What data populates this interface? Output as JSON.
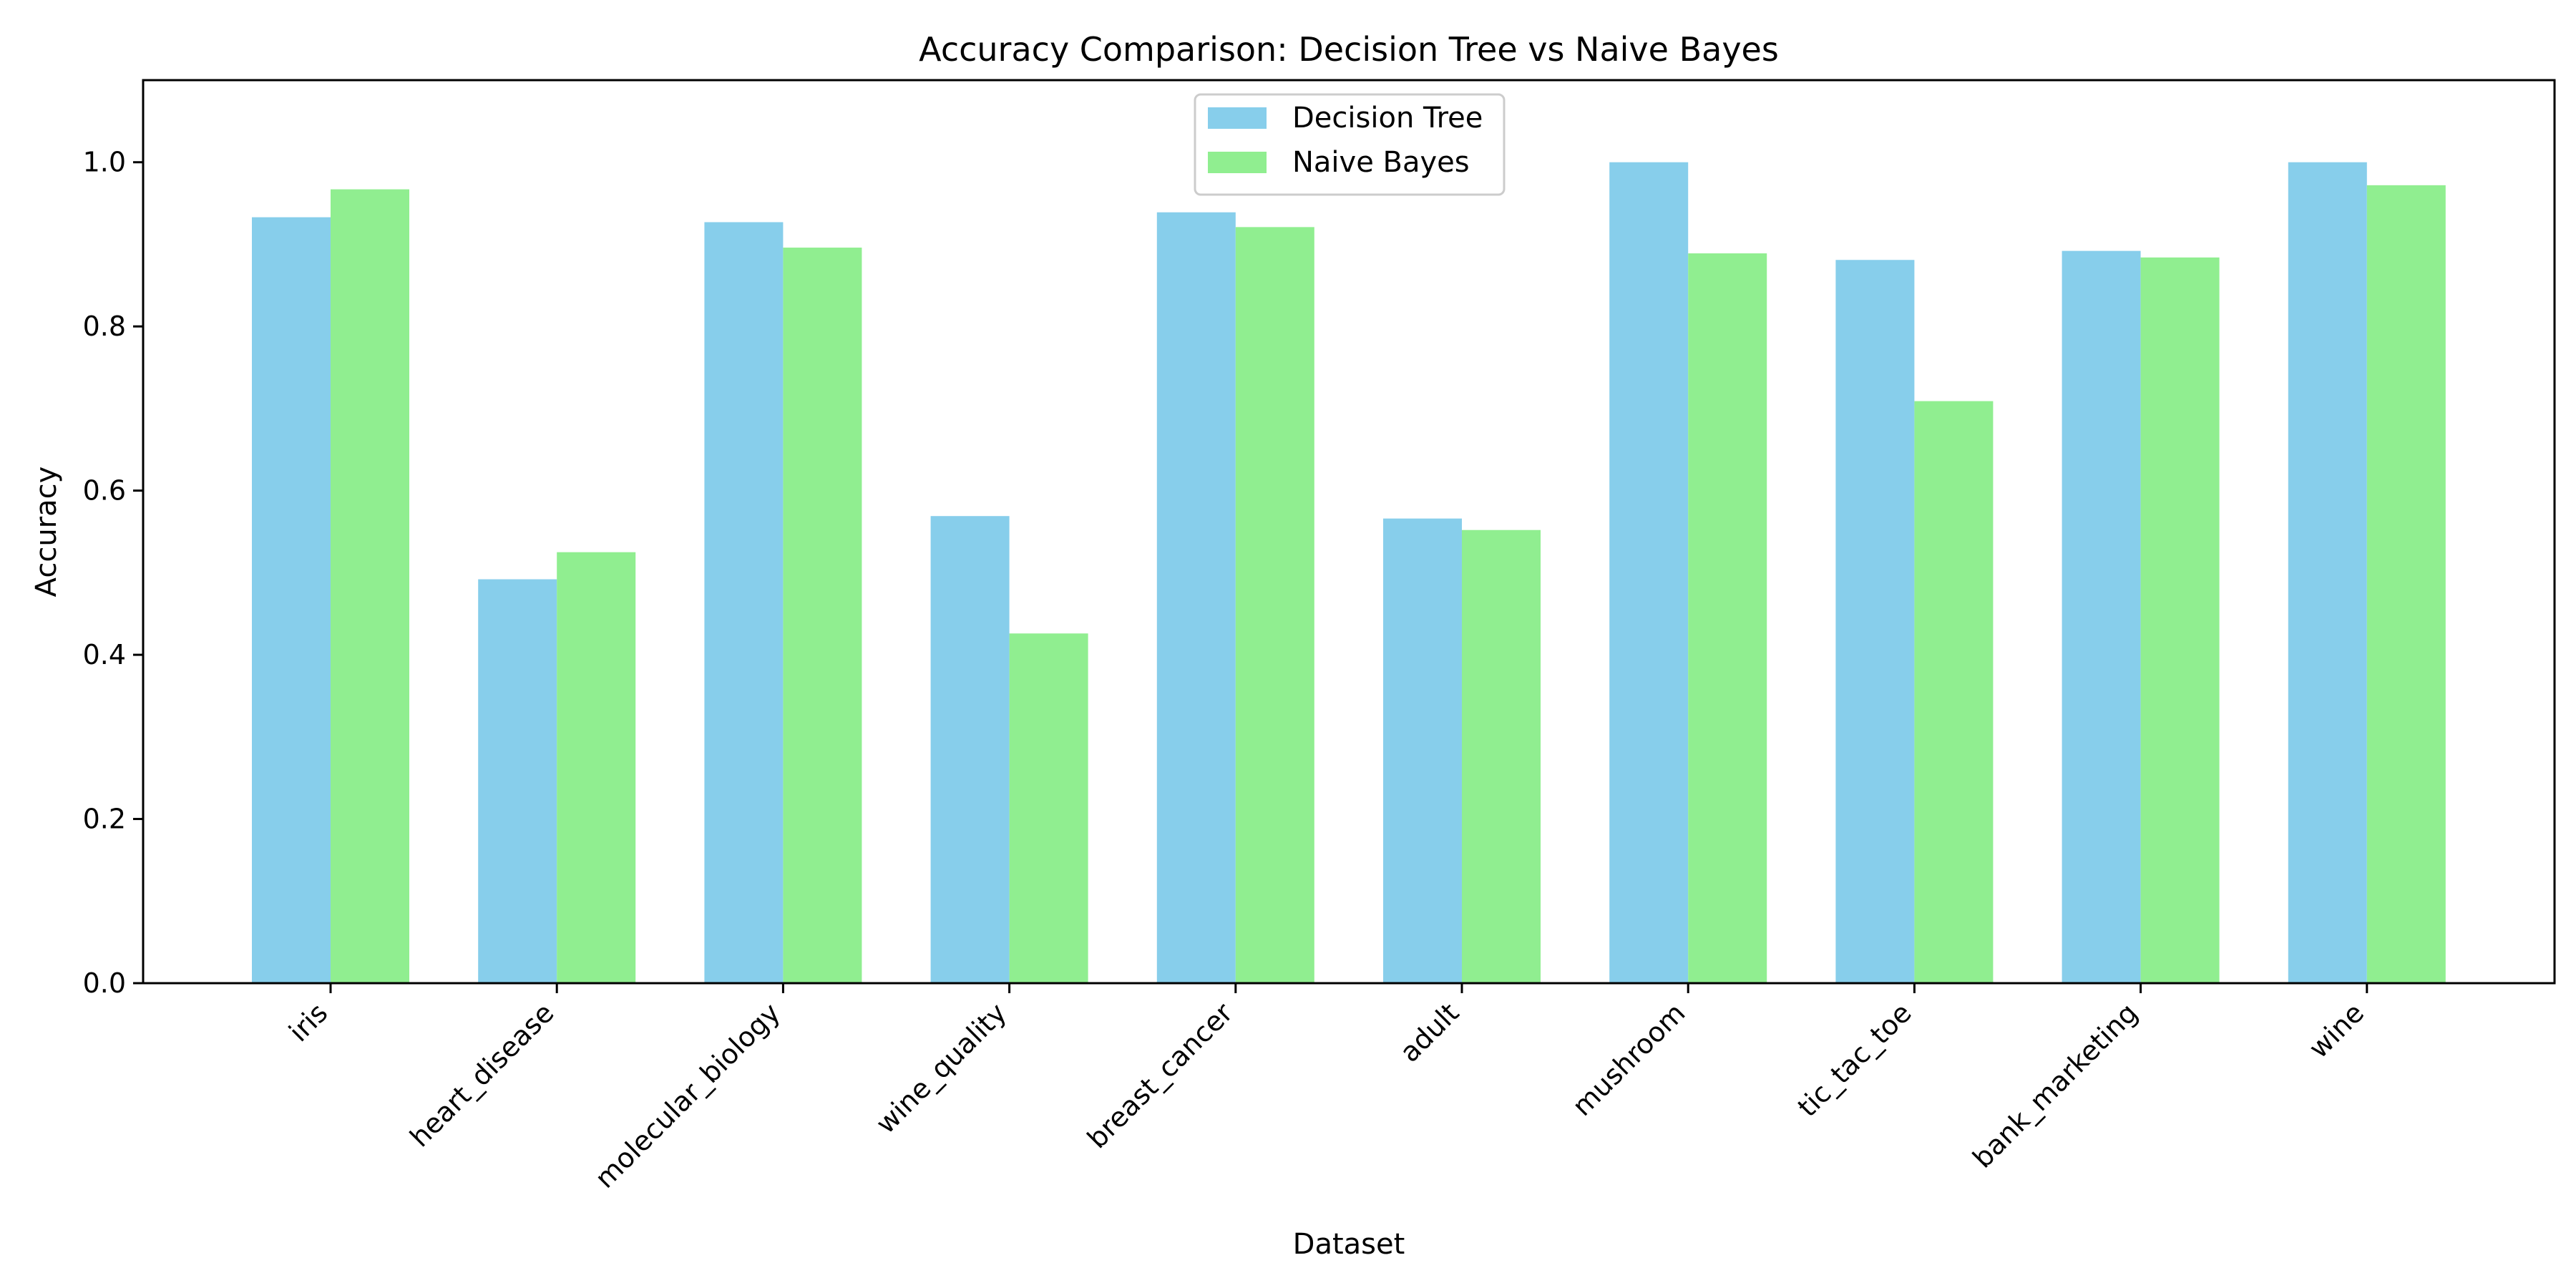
{
  "chart_data": {
    "type": "bar",
    "title": "Accuracy Comparison: Decision Tree vs Naive Bayes",
    "xlabel": "Dataset",
    "ylabel": "Accuracy",
    "ylim": [
      0,
      1.1
    ],
    "yticks": [
      "0.0",
      "0.2",
      "0.4",
      "0.6",
      "0.8",
      "1.0"
    ],
    "ytick_values": [
      0,
      0.2,
      0.4,
      0.6,
      0.8,
      1.0
    ],
    "categories": [
      "iris",
      "heart_disease",
      "molecular_biology",
      "wine_quality",
      "breast_cancer",
      "adult",
      "mushroom",
      "tic_tac_toe",
      "bank_marketing",
      "wine"
    ],
    "series": [
      {
        "name": "Decision Tree",
        "color": "#87CEEB",
        "values": [
          0.933,
          0.492,
          0.927,
          0.569,
          0.939,
          0.566,
          1.0,
          0.881,
          0.892,
          1.0
        ]
      },
      {
        "name": "Naive Bayes",
        "color": "#90EE90",
        "values": [
          0.967,
          0.525,
          0.896,
          0.426,
          0.921,
          0.552,
          0.889,
          0.709,
          0.884,
          0.972
        ]
      }
    ],
    "legend_position": "top-center",
    "grid": false
  }
}
